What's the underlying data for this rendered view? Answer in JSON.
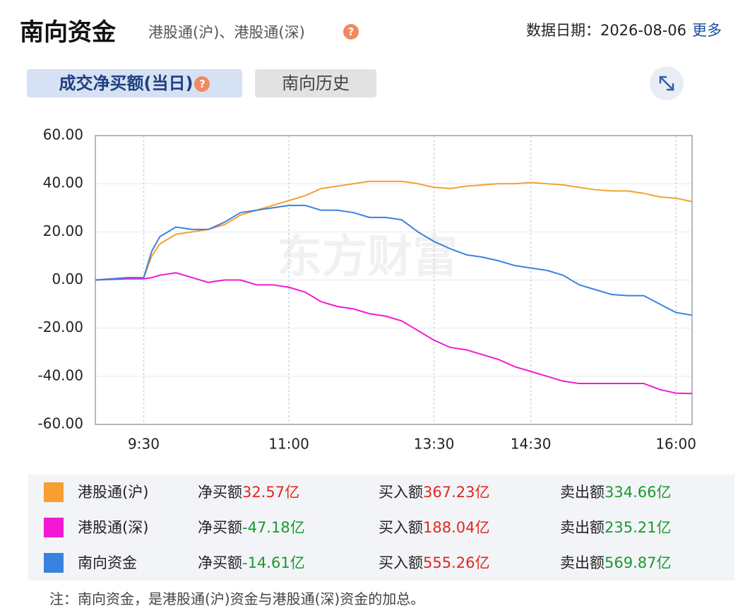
{
  "header": {
    "title": "南向资金",
    "subtitle": "港股通(沪)、港股通(深)",
    "help": "?",
    "date": "数据日期：2026-08-06",
    "more": "更多"
  },
  "tabs": [
    {
      "label": "成交净买额(当日)",
      "help": "?"
    },
    {
      "label": "南向历史"
    }
  ],
  "chart_data": {
    "type": "line",
    "watermark": "东方财富",
    "x": [
      0,
      20,
      30,
      35,
      40,
      50,
      60,
      70,
      80,
      90,
      100,
      110,
      120,
      130,
      140,
      150,
      160,
      170,
      180,
      190,
      200,
      210,
      220,
      230,
      240,
      250,
      260,
      270,
      280,
      290,
      300,
      310,
      320,
      330,
      340,
      350,
      360,
      370
    ],
    "xlim": [
      0,
      370
    ],
    "xticks": [
      {
        "value": 30,
        "label": "9:30"
      },
      {
        "value": 120,
        "label": "11:00"
      },
      {
        "value": 210,
        "label": "13:30"
      },
      {
        "value": 270,
        "label": "14:30"
      },
      {
        "value": 360,
        "label": "16:00"
      }
    ],
    "ylim": [
      -60,
      60
    ],
    "yticks": [
      {
        "value": 60,
        "label": "60.00"
      },
      {
        "value": 40,
        "label": "40.00"
      },
      {
        "value": 20,
        "label": "20.00"
      },
      {
        "value": 0,
        "label": "0.00"
      },
      {
        "value": -20,
        "label": "-20.00"
      },
      {
        "value": -40,
        "label": "-40.00"
      },
      {
        "value": -60,
        "label": "-60.00"
      }
    ],
    "grid": true,
    "series": [
      {
        "name": "港股通(沪)",
        "color": "#f5a030",
        "values": [
          0,
          1,
          1,
          10,
          15,
          19,
          20,
          21,
          23,
          27,
          29,
          31,
          33,
          35,
          38,
          39,
          40,
          41,
          41,
          41,
          40,
          38.5,
          38,
          39,
          39.5,
          40,
          40,
          40.5,
          40,
          39.5,
          38.5,
          37.5,
          37,
          37,
          36,
          34.5,
          34,
          32.57
        ]
      },
      {
        "name": "港股通(深)",
        "color": "#f01ad2",
        "values": [
          0,
          0.5,
          0.5,
          1,
          2,
          3,
          1,
          -1,
          0,
          0,
          -2,
          -2,
          -3,
          -5,
          -9,
          -11,
          -12,
          -14,
          -15,
          -17,
          -21,
          -25,
          -28,
          -29,
          -31,
          -33,
          -36,
          -38,
          -40,
          -42,
          -43,
          -43,
          -43,
          -43,
          -43,
          -45.5,
          -47,
          -47.18
        ]
      },
      {
        "name": "南向资金",
        "color": "#3a82e0",
        "values": [
          0,
          1,
          1,
          12,
          18,
          22,
          21,
          21,
          24,
          28,
          29,
          30,
          31,
          31,
          29,
          29,
          28,
          26,
          26,
          25,
          20,
          16,
          13,
          10.5,
          9.5,
          8,
          6,
          5,
          4,
          2,
          -2,
          -4,
          -6,
          -6.5,
          -6.5,
          -10,
          -13.5,
          -14.61
        ]
      }
    ]
  },
  "summary": {
    "rows": [
      {
        "net_label": "净买额",
        "net": "32.57亿",
        "buy_label": "买入额",
        "buy": "367.23亿",
        "sell_label": "卖出额",
        "sell": "334.66亿"
      },
      {
        "net_label": "净买额",
        "net": "-47.18亿",
        "buy_label": "买入额",
        "buy": "188.04亿",
        "sell_label": "卖出额",
        "sell": "235.21亿"
      },
      {
        "net_label": "净买额",
        "net": "-14.61亿",
        "buy_label": "买入额",
        "buy": "555.26亿",
        "sell_label": "卖出额",
        "sell": "569.87亿"
      }
    ]
  },
  "note": "注：南向资金，是港股通(沪)资金与港股通(深)资金的加总。"
}
